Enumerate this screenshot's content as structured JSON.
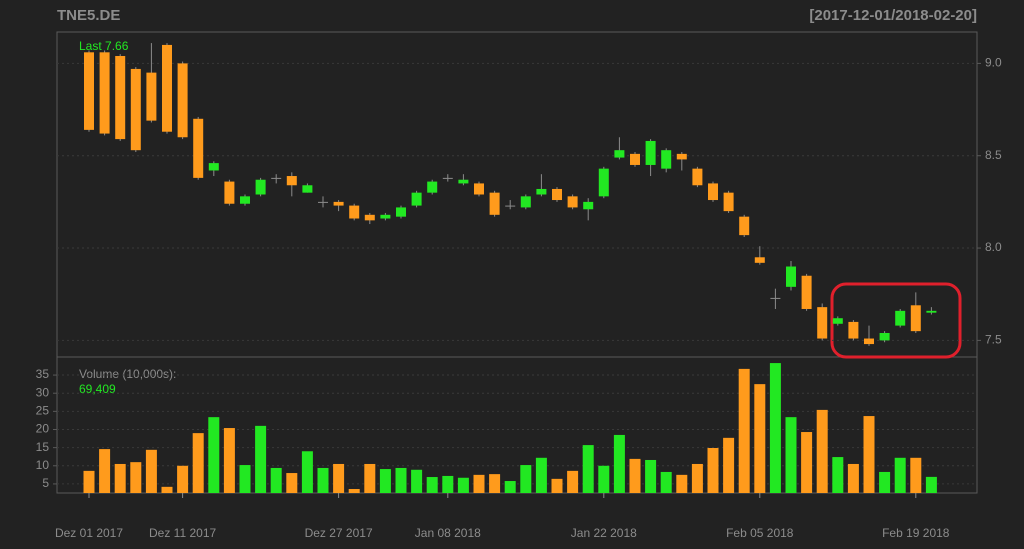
{
  "chart_data": {
    "type": "candlestick",
    "title": "TNE5.DE",
    "date_range": "[2017-12-01/2018-02-20]",
    "last_label": "Last 7.66",
    "categories": [
      "Dez 01 2017",
      null,
      null,
      null,
      null,
      null,
      "Dez 11 2017",
      null,
      null,
      null,
      null,
      null,
      null,
      null,
      null,
      null,
      "Dez 27 2017",
      null,
      null,
      null,
      null,
      null,
      null,
      "Jan 08 2018",
      null,
      null,
      null,
      null,
      null,
      null,
      null,
      null,
      null,
      "Jan 22 2018",
      null,
      null,
      null,
      null,
      null,
      null,
      null,
      null,
      null,
      "Feb 05 2018",
      null,
      null,
      null,
      null,
      null,
      null,
      null,
      null,
      null,
      "Feb 19 2018",
      null
    ],
    "open": [
      9.06,
      9.06,
      9.04,
      8.97,
      8.95,
      9.1,
      9.0,
      8.7,
      8.42,
      8.36,
      8.24,
      8.29,
      8.38,
      8.39,
      8.3,
      8.25,
      8.25,
      8.23,
      8.18,
      8.16,
      8.17,
      8.23,
      8.3,
      8.38,
      8.35,
      8.35,
      8.3,
      8.23,
      8.22,
      8.29,
      8.32,
      8.28,
      8.21,
      8.28,
      8.49,
      8.51,
      8.45,
      8.43,
      8.51,
      8.43,
      8.35,
      8.3,
      8.17,
      7.95,
      7.73,
      7.79,
      7.85,
      7.68,
      7.59,
      7.6,
      7.51,
      7.5,
      7.58,
      7.69,
      7.65
    ],
    "high": [
      9.07,
      9.07,
      9.05,
      8.98,
      9.11,
      9.11,
      9.01,
      8.71,
      8.47,
      8.37,
      8.29,
      8.38,
      8.4,
      8.41,
      8.35,
      8.28,
      8.26,
      8.24,
      8.19,
      8.19,
      8.23,
      8.31,
      8.37,
      8.4,
      8.4,
      8.36,
      8.31,
      8.26,
      8.29,
      8.4,
      8.33,
      8.29,
      8.27,
      8.44,
      8.6,
      8.52,
      8.59,
      8.54,
      8.52,
      8.44,
      8.36,
      8.31,
      8.18,
      8.01,
      7.78,
      7.93,
      7.86,
      7.7,
      7.63,
      7.61,
      7.58,
      7.55,
      7.67,
      7.76,
      7.68
    ],
    "low": [
      8.63,
      8.61,
      8.58,
      8.52,
      8.68,
      8.62,
      8.59,
      8.37,
      8.39,
      8.23,
      8.23,
      8.28,
      8.35,
      8.28,
      8.3,
      8.22,
      8.2,
      8.15,
      8.13,
      8.15,
      8.16,
      8.22,
      8.29,
      8.36,
      8.34,
      8.28,
      8.17,
      8.21,
      8.21,
      8.28,
      8.25,
      8.21,
      8.15,
      8.27,
      8.48,
      8.44,
      8.39,
      8.41,
      8.42,
      8.33,
      8.25,
      8.19,
      8.06,
      7.91,
      7.67,
      7.77,
      7.66,
      7.5,
      7.58,
      7.5,
      7.47,
      7.49,
      7.57,
      7.54,
      7.64
    ],
    "close": [
      8.64,
      8.62,
      8.59,
      8.53,
      8.69,
      8.63,
      8.6,
      8.38,
      8.46,
      8.24,
      8.28,
      8.37,
      8.38,
      8.34,
      8.34,
      8.25,
      8.23,
      8.16,
      8.15,
      8.18,
      8.22,
      8.3,
      8.36,
      8.38,
      8.37,
      8.29,
      8.18,
      8.23,
      8.28,
      8.32,
      8.26,
      8.22,
      8.25,
      8.43,
      8.53,
      8.45,
      8.58,
      8.53,
      8.48,
      8.34,
      8.26,
      8.2,
      8.07,
      7.92,
      7.73,
      7.9,
      7.67,
      7.51,
      7.62,
      7.51,
      7.48,
      7.54,
      7.66,
      7.55,
      7.66
    ],
    "up_color": "#22e822",
    "down_color": "#ff9b1c",
    "doji_color": "#8c8c8c",
    "ylim": [
      7.41,
      9.17
    ],
    "yticks": [
      7.5,
      {
        "value": 8.0,
        "label": "8.0"
      },
      8.5,
      {
        "value": 9.0,
        "label": "9.0"
      }
    ],
    "grid": true,
    "volume": {
      "label": "Volume (10,000s):",
      "last_label": "69,409",
      "values": [
        8.6,
        14.6,
        10.5,
        11,
        14.4,
        4.2,
        10,
        19,
        23.4,
        20.4,
        10.2,
        21,
        9.4,
        8,
        14,
        9.4,
        10.5,
        3.6,
        10.5,
        9.1,
        9.4,
        8.9,
        6.9,
        7.2,
        6.7,
        7.5,
        7.7,
        5.8,
        10.2,
        12.2,
        6.4,
        8.6,
        15.7,
        10,
        18.5,
        11.9,
        11.6,
        8.3,
        7.5,
        10.5,
        14.9,
        17.7,
        36.7,
        32.5,
        38.3,
        23.4,
        19.3,
        25.4,
        12.4,
        10.5,
        23.7,
        8.3,
        12.2,
        12.2,
        6.94
      ],
      "ylim": [
        2.5,
        39.7
      ],
      "yticks": [
        5,
        10,
        15,
        20,
        25,
        30,
        35
      ]
    }
  }
}
